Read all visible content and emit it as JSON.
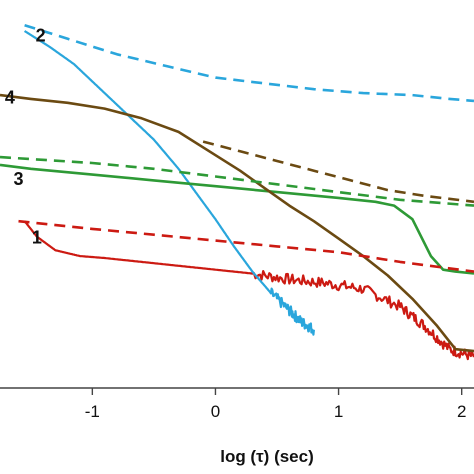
{
  "chart_data": {
    "type": "line",
    "xlabel": "log (τ) (sec)",
    "ylabel": "",
    "title": "",
    "xlim": [
      -1.75,
      2.1
    ],
    "ylim": [
      0,
      1
    ],
    "x_ticks": [
      {
        "value": -1,
        "label": "-1"
      },
      {
        "value": 0,
        "label": "0"
      },
      {
        "value": 1,
        "label": "1"
      },
      {
        "value": 2,
        "label": "2"
      }
    ],
    "grid": false,
    "legend": "none",
    "curve_labels": [
      {
        "text": "1",
        "x": -1.45,
        "y": 0.385
      },
      {
        "text": "2",
        "x": -1.42,
        "y": 0.905
      },
      {
        "text": "3",
        "x": -1.6,
        "y": 0.535
      },
      {
        "text": "4",
        "x": -1.67,
        "y": 0.745
      }
    ],
    "series": [
      {
        "style": "solid",
        "color": "#cc1a12",
        "noise": 0.014,
        "noise_from": 0.3,
        "x": [
          -1.55,
          -1.45,
          -1.3,
          -1.1,
          -0.9,
          -0.6,
          -0.3,
          0.0,
          0.3,
          0.6,
          0.9,
          1.2,
          1.5,
          1.7,
          1.9,
          2.1
        ],
        "y": [
          0.43,
          0.39,
          0.355,
          0.34,
          0.335,
          0.325,
          0.315,
          0.305,
          0.295,
          0.28,
          0.27,
          0.255,
          0.21,
          0.16,
          0.1,
          0.08
        ]
      },
      {
        "style": "solid",
        "color": "#2aa6dc",
        "noise": 0.014,
        "noise_from": 0.45,
        "x": [
          -1.55,
          -1.35,
          -1.15,
          -1.0,
          -0.85,
          -0.7,
          -0.5,
          -0.3,
          -0.15,
          0.0,
          0.15,
          0.3,
          0.45,
          0.6,
          0.7,
          0.8
        ],
        "y": [
          0.92,
          0.88,
          0.835,
          0.79,
          0.745,
          0.7,
          0.64,
          0.565,
          0.5,
          0.435,
          0.365,
          0.3,
          0.245,
          0.2,
          0.17,
          0.15
        ]
      },
      {
        "style": "solid",
        "color": "#2e9a36",
        "x": [
          -1.75,
          -1.5,
          -1.0,
          -0.5,
          0.0,
          0.5,
          1.0,
          1.3,
          1.45,
          1.6,
          1.75,
          1.85,
          1.95,
          2.1
        ],
        "y": [
          0.575,
          0.565,
          0.55,
          0.535,
          0.52,
          0.505,
          0.49,
          0.48,
          0.47,
          0.435,
          0.34,
          0.305,
          0.3,
          0.295
        ]
      },
      {
        "style": "solid",
        "color": "#6b4a12",
        "x": [
          -1.75,
          -1.5,
          -1.2,
          -0.9,
          -0.6,
          -0.3,
          0.0,
          0.2,
          0.4,
          0.6,
          0.8,
          1.0,
          1.2,
          1.4,
          1.6,
          1.8,
          1.95,
          2.1
        ],
        "y": [
          0.755,
          0.745,
          0.735,
          0.72,
          0.695,
          0.66,
          0.6,
          0.56,
          0.515,
          0.47,
          0.43,
          0.385,
          0.34,
          0.29,
          0.23,
          0.16,
          0.1,
          0.095
        ]
      },
      {
        "style": "dashed",
        "color": "#cc1a12",
        "x": [
          -1.6,
          -1.0,
          -0.5,
          0.0,
          0.5,
          1.0,
          1.5,
          2.1
        ],
        "y": [
          0.43,
          0.41,
          0.395,
          0.38,
          0.365,
          0.35,
          0.325,
          0.3
        ]
      },
      {
        "style": "dashed",
        "color": "#2aa6dc",
        "x": [
          -1.55,
          -1.2,
          -0.8,
          -0.4,
          0.0,
          0.4,
          0.8,
          1.2,
          1.6,
          1.9,
          2.1
        ],
        "y": [
          0.935,
          0.9,
          0.86,
          0.83,
          0.8,
          0.785,
          0.77,
          0.76,
          0.755,
          0.745,
          0.74
        ]
      },
      {
        "style": "dashed",
        "color": "#2e9a36",
        "x": [
          -1.75,
          -1.0,
          -0.5,
          0.0,
          0.5,
          1.0,
          1.5,
          2.1
        ],
        "y": [
          0.595,
          0.58,
          0.565,
          0.545,
          0.525,
          0.505,
          0.485,
          0.47
        ]
      },
      {
        "style": "dashed",
        "color": "#6b4a12",
        "x": [
          -0.1,
          0.2,
          0.5,
          0.8,
          1.1,
          1.4,
          1.7,
          2.1
        ],
        "y": [
          0.635,
          0.61,
          0.585,
          0.56,
          0.535,
          0.51,
          0.495,
          0.48
        ]
      }
    ]
  }
}
